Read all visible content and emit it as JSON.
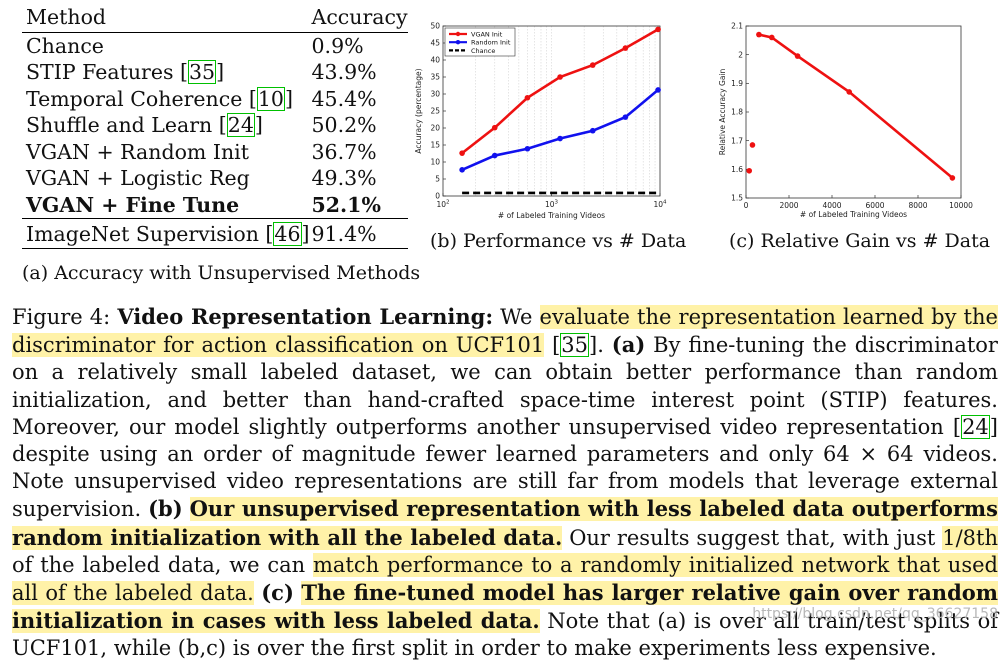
{
  "table": {
    "header": {
      "method": "Method",
      "accuracy": "Accuracy"
    },
    "rows": [
      {
        "method": "Chance",
        "accuracy": "0.9%"
      },
      {
        "method": "STIP Features [",
        "cite": "35",
        "after": "]",
        "accuracy": "43.9%"
      },
      {
        "method": "Temporal Coherence [",
        "cite": "10",
        "after": "]",
        "accuracy": "45.4%"
      },
      {
        "method": "Shuffle and Learn [",
        "cite": "24",
        "after": "]",
        "accuracy": "50.2%"
      },
      {
        "method": "VGAN + Random Init",
        "accuracy": "36.7%"
      },
      {
        "method": "VGAN + Logistic Reg",
        "accuracy": "49.3%"
      },
      {
        "method": "VGAN + Fine Tune",
        "accuracy": "52.1%"
      },
      {
        "method": "ImageNet Supervision [",
        "cite": "46",
        "after": "]",
        "accuracy": "91.4%"
      }
    ],
    "caption": "(a) Accuracy with Unsupervised Methods"
  },
  "captions": {
    "b": "(b) Performance vs # Data",
    "c": "(c) Relative Gain vs # Data"
  },
  "chart_data": [
    {
      "type": "line",
      "xscale": "log",
      "xlim": [
        100,
        10000
      ],
      "ylim": [
        0,
        50
      ],
      "xlabel": "# of Labeled Training Videos",
      "ylabel": "Accuracy (percentage)",
      "xticks": [
        "10^2",
        "10^3",
        "10^4"
      ],
      "yticks": [
        0,
        5,
        10,
        15,
        20,
        25,
        30,
        35,
        40,
        45,
        50
      ],
      "grid": "x-minor",
      "legend_position": "top-left",
      "series": [
        {
          "name": "VGAN Init",
          "color": "#ee1111",
          "x": [
            150,
            300,
            600,
            1200,
            2400,
            4800,
            9600
          ],
          "y": [
            12.6,
            20.1,
            28.9,
            35.0,
            38.5,
            43.5,
            49.0
          ]
        },
        {
          "name": "Random Init",
          "color": "#1111ee",
          "x": [
            150,
            300,
            600,
            1200,
            2400,
            4800,
            9600
          ],
          "y": [
            7.7,
            11.9,
            13.9,
            16.9,
            19.2,
            23.2,
            31.2
          ]
        },
        {
          "name": "Chance",
          "color": "#000000",
          "style": "dashed",
          "x": [
            150,
            9600
          ],
          "y": [
            0.9,
            0.9
          ]
        }
      ]
    },
    {
      "type": "line",
      "xlim": [
        0,
        10000
      ],
      "ylim": [
        1.5,
        2.1
      ],
      "xlabel": "# of Labeled Training Videos",
      "ylabel": "Relative Accuracy Gain",
      "xticks": [
        0,
        2000,
        4000,
        6000,
        8000,
        10000
      ],
      "yticks": [
        1.5,
        1.6,
        1.7,
        1.8,
        1.9,
        2,
        2.1
      ],
      "series": [
        {
          "color": "#ee1111",
          "x": [
            600,
            1200,
            2400,
            4800,
            9600
          ],
          "y": [
            2.07,
            2.06,
            1.995,
            1.87,
            1.57
          ]
        },
        {
          "color": "#ee1111",
          "markers_only": true,
          "x": [
            150,
            300
          ],
          "y": [
            1.595,
            1.685
          ]
        }
      ]
    }
  ],
  "caption": {
    "label": "Figure 4:",
    "title": "Video Representation Learning:",
    "t1": "We",
    "h1": "evaluate the representation learned by the discriminator for action classification on UCF101",
    "t2": "[",
    "c1": "35",
    "t3": "].",
    "la": "(a)",
    "t4": "By fine-tuning the discriminator on a relatively small labeled dataset, we can obtain better performance than random initialization, and better than hand-crafted space-time interest point (STIP) features. Moreover, our model slightly outperforms another unsupervised video representation [",
    "c2": "24",
    "t5": "] despite using an order of magnitude fewer learned parameters and only 64 × 64 videos. Note unsupervised video representations are still far from models that leverage external supervision.",
    "lb": "(b)",
    "h2": "Our unsupervised representation with less labeled data outperforms random initialization with all the labeled data.",
    "t6": "Our results suggest that, with just",
    "h3": "1/8th",
    "t7": "of the labeled data, we can",
    "h4": "match performance to a randomly initialized network that used all of the labeled data.",
    "lc": "(c)",
    "h5": "The fine-tuned model has larger relative gain over random initialization in cases with less labeled data.",
    "t8": "Note that (a) is over all train/test splits of UCF101, while (b,c) is over the first split in order to make experiments less expensive."
  },
  "watermark": "https://blog.csdn.net/qq_36627158"
}
